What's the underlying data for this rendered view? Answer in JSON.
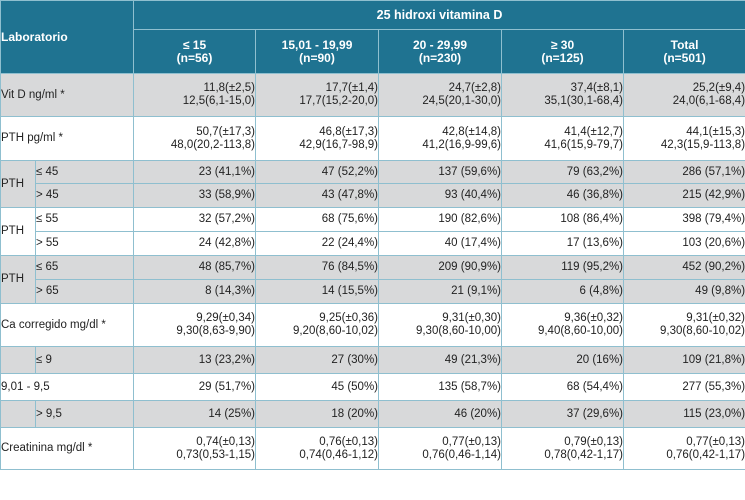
{
  "header": {
    "laboratorio": "Laboratorio",
    "group_title": "25 hidroxi vitamina D",
    "columns": [
      {
        "range": "≤ 15",
        "n": "(n=56)"
      },
      {
        "range": "15,01 - 19,99",
        "n": "(n=90)"
      },
      {
        "range": "20 - 29,99",
        "n": "(n=230)"
      },
      {
        "range": "≥ 30",
        "n": "(n=125)"
      },
      {
        "range": "Total",
        "n": "(n=501)"
      }
    ]
  },
  "rows": {
    "vitd": {
      "label": "Vit D ng/ml *",
      "cells": [
        [
          "11,8(±2,5)",
          "12,5(6,1-15,0)"
        ],
        [
          "17,7(±1,4)",
          "17,7(15,2-20,0)"
        ],
        [
          "24,7(±2,8)",
          "24,5(20,1-30,0)"
        ],
        [
          "37,4(±8,1)",
          "35,1(30,1-68,4)"
        ],
        [
          "25,2(±9,4)",
          "24,0(6,1-68,4)"
        ]
      ]
    },
    "pth": {
      "label": "PTH pg/ml *",
      "cells": [
        [
          "50,7(±17,3)",
          "48,0(20,2-113,8)"
        ],
        [
          "46,8(±17,3)",
          "42,9(16,7-98,9)"
        ],
        [
          "42,8(±14,8)",
          "41,2(16,9-99,6)"
        ],
        [
          "41,4(±12,7)",
          "41,6(15,9-79,7)"
        ],
        [
          "44,1(±15,3)",
          "42,3(15,9-113,8)"
        ]
      ]
    },
    "pth45": {
      "label": "PTH",
      "a_label": "≤ 45",
      "a_cells": [
        "23 (41,1%)",
        "47 (52,2%)",
        "137 (59,6%)",
        "79 (63,2%)",
        "286 (57,1%)"
      ],
      "b_label": "> 45",
      "b_cells": [
        "33 (58,9%)",
        "43 (47,8%)",
        "93 (40,4%)",
        "46 (36,8%)",
        "215 (42,9%)"
      ]
    },
    "pth55": {
      "label": "PTH",
      "a_label": "≤ 55",
      "a_cells": [
        "32 (57,2%)",
        "68 (75,6%)",
        "190 (82,6%)",
        "108 (86,4%)",
        "398 (79,4%)"
      ],
      "b_label": "> 55",
      "b_cells": [
        "24 (42,8%)",
        "22 (24,4%)",
        "40 (17,4%)",
        "17 (13,6%)",
        "103 (20,6%)"
      ]
    },
    "pth65": {
      "label": "PTH",
      "a_label": "≤ 65",
      "a_cells": [
        "48 (85,7%)",
        "76 (84,5%)",
        "209 (90,9%)",
        "119 (95,2%)",
        "452 (90,2%)"
      ],
      "b_label": "> 65",
      "b_cells": [
        "8 (14,3%)",
        "14 (15,5%)",
        "21 (9,1%)",
        "6 (4,8%)",
        "49 (9,8%)"
      ]
    },
    "ca": {
      "label": "Ca corregido mg/dl *",
      "cells": [
        [
          "9,29(±0,34)",
          "9,30(8,63-9,90)"
        ],
        [
          "9,25(±0,36)",
          "9,20(8,60-10,02)"
        ],
        [
          "9,31(±0,30)",
          "9,30(8,60-10,00)"
        ],
        [
          "9,36(±0,32)",
          "9,40(8,60-10,00)"
        ],
        [
          "9,31(±0,32)",
          "9,30(8,60-10,02)"
        ]
      ]
    },
    "ca_le9": {
      "label": "≤ 9",
      "cells": [
        "13 (23,2%)",
        "27 (30%)",
        "49 (21,3%)",
        "20 (16%)",
        "109 (21,8%)"
      ]
    },
    "ca_mid": {
      "label": "9,01 - 9,5",
      "cells": [
        "29 (51,7%)",
        "45 (50%)",
        "135 (58,7%)",
        "68 (54,4%)",
        "277 (55,3%)"
      ]
    },
    "ca_gt95": {
      "label": "> 9,5",
      "cells": [
        "14 (25%)",
        "18 (20%)",
        "46 (20%)",
        "37 (29,6%)",
        "115 (23,0%)"
      ]
    },
    "creat": {
      "label": "Creatinina mg/dl *",
      "cells": [
        [
          "0,74(±0,13)",
          "0,73(0,53-1,15)"
        ],
        [
          "0,76(±0,13)",
          "0,74(0,46-1,12)"
        ],
        [
          "0,77(±0,13)",
          "0,76(0,46-1,14)"
        ],
        [
          "0,79(±0,13)",
          "0,78(0,42-1,17)"
        ],
        [
          "0,77(±0,13)",
          "0,76(0,42-1,17)"
        ]
      ]
    }
  }
}
